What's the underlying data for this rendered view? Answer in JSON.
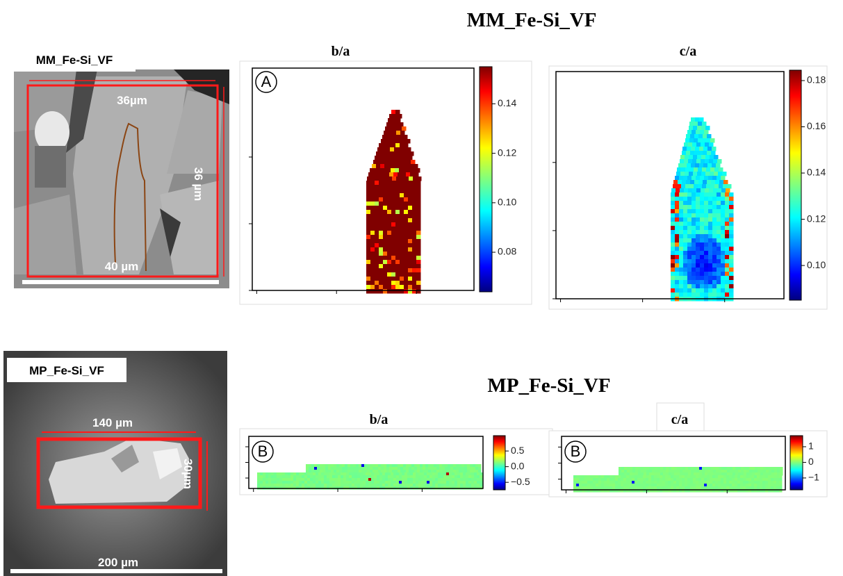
{
  "figure": {
    "top": {
      "title": "MM_Fe-Si_VF",
      "micrograph": {
        "label": "MM_Fe-Si_VF",
        "width_label": "36µm",
        "height_label": "36 µm",
        "scale_label": "40 µm"
      },
      "maps": [
        {
          "title": "b/a",
          "marker": "A",
          "colorbar": {
            "lim": [
              0.064,
              0.155
            ],
            "ticks": [
              {
                "value": 0.08,
                "label": "0.08"
              },
              {
                "value": 0.1,
                "label": "0.10"
              },
              {
                "value": 0.12,
                "label": "0.12"
              },
              {
                "value": 0.14,
                "label": "0.14"
              }
            ]
          }
        },
        {
          "title": "c/a",
          "colorbar": {
            "lim": [
              0.085,
              0.1845
            ],
            "ticks": [
              {
                "value": 0.1,
                "label": "0.10"
              },
              {
                "value": 0.12,
                "label": "0.12"
              },
              {
                "value": 0.14,
                "label": "0.14"
              },
              {
                "value": 0.16,
                "label": "0.16"
              },
              {
                "value": 0.18,
                "label": "0.18"
              }
            ]
          }
        }
      ]
    },
    "bottom": {
      "title": "MP_Fe-Si_VF",
      "micrograph": {
        "label": "MP_Fe-Si_VF",
        "width_label": "140 µm",
        "height_label": "30µm",
        "scale_label": "200 µm"
      },
      "maps": [
        {
          "title": "b/a",
          "marker": "B",
          "colorbar": {
            "lim": [
              -0.74,
              0.99
            ],
            "ticks": [
              {
                "value": -0.5,
                "label": "−0.5"
              },
              {
                "value": 0,
                "label": "0.0"
              },
              {
                "value": 0.5,
                "label": "0.5"
              }
            ]
          }
        },
        {
          "title": "c/a",
          "marker": "B",
          "colorbar": {
            "lim": [
              -1.76,
              1.71
            ],
            "ticks": [
              {
                "value": -1,
                "label": "−1"
              },
              0,
              1
            ]
          }
        }
      ]
    }
  }
}
